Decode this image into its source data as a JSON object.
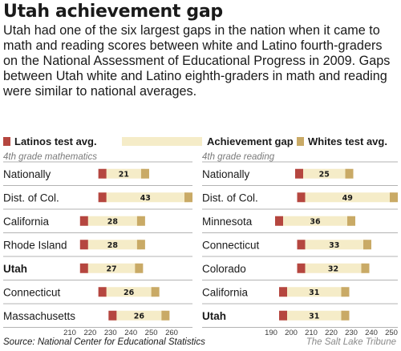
{
  "title": "Utah achievement gap",
  "subtitle": "Utah had one of the six largest gaps in the nation when it came to math and reading scores between white and Latino fourth-graders on the National Assessment of Educational Progress in 2009. Gaps between Utah white and Latino eighth-graders in math and reading were similar to national averages.",
  "legend": {
    "latinos": "Latinos test avg.",
    "gap": "Achievement gap",
    "whites": "Whites test avg."
  },
  "colors": {
    "latinos": "#b5463f",
    "gap": "#f5ecc8",
    "whites": "#c9aa66",
    "divider": "#9a9a9a"
  },
  "source": "Source: National Center for Educational Statistics",
  "credit": "The Salt Lake Tribune",
  "chart_data": [
    {
      "type": "bar",
      "title": "4th grade mathematics",
      "xlim": [
        210,
        260
      ],
      "xticks": [
        210,
        220,
        230,
        240,
        250,
        260
      ],
      "rows": [
        {
          "label": "Nationally",
          "bold": false,
          "latino": 226,
          "white": 247,
          "gap": "21"
        },
        {
          "label": "Dist. of Col.",
          "bold": false,
          "latino": 226,
          "white": 269,
          "gap": "43"
        },
        {
          "label": "California",
          "bold": false,
          "latino": 217,
          "white": 245,
          "gap": "28"
        },
        {
          "label": "Rhode Island",
          "bold": false,
          "latino": 217,
          "white": 245,
          "gap": "28"
        },
        {
          "label": "Utah",
          "bold": true,
          "latino": 217,
          "white": 244,
          "gap": "27"
        },
        {
          "label": "Connecticut",
          "bold": false,
          "latino": 226,
          "white": 252,
          "gap": "26"
        },
        {
          "label": "Massachusetts",
          "bold": false,
          "latino": 231,
          "white": 257,
          "gap": "26"
        }
      ]
    },
    {
      "type": "bar",
      "title": "4th grade reading",
      "xlim": [
        190,
        250
      ],
      "xticks": [
        190,
        200,
        210,
        220,
        230,
        240,
        250
      ],
      "rows": [
        {
          "label": "Nationally",
          "bold": false,
          "latino": 204,
          "white": 229,
          "gap": "25"
        },
        {
          "label": "Dist. of Col.",
          "bold": false,
          "latino": 205,
          "white": 254,
          "gap": "49"
        },
        {
          "label": "Minnesota",
          "bold": false,
          "latino": 194,
          "white": 230,
          "gap": "36"
        },
        {
          "label": "Connecticut",
          "bold": false,
          "latino": 205,
          "white": 238,
          "gap": "33"
        },
        {
          "label": "Colorado",
          "bold": false,
          "latino": 205,
          "white": 237,
          "gap": "32"
        },
        {
          "label": "California",
          "bold": false,
          "latino": 196,
          "white": 227,
          "gap": "31"
        },
        {
          "label": "Utah",
          "bold": true,
          "latino": 196,
          "white": 227,
          "gap": "31"
        }
      ]
    }
  ]
}
